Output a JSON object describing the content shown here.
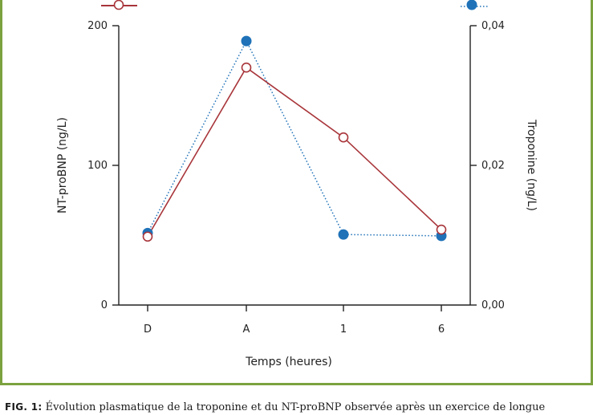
{
  "chart_data": {
    "type": "line",
    "categories": [
      "D",
      "A",
      "1",
      "6"
    ],
    "xlabel": "Temps (heures)",
    "ylabel_left": "NT-proBNP (ng/L)",
    "ylabel_right": "Troponine (ng/L)",
    "ylim_left": [
      0,
      200
    ],
    "ylim_right": [
      0,
      0.04
    ],
    "yticks_left": [
      "0",
      "100",
      "200"
    ],
    "yticks_right": [
      "0,00",
      "0,02",
      "0,04"
    ],
    "grid": false,
    "legend_placement": "top",
    "series": [
      {
        "key": "ntprobnp",
        "axis": "left",
        "values": [
          49,
          170,
          120,
          54
        ],
        "color": "#a8353a",
        "style": "solid",
        "marker": "open-circle"
      },
      {
        "key": "troponine",
        "axis": "right",
        "values": [
          0.0103,
          0.0378,
          0.0101,
          0.0099
        ],
        "color": "#1f72b8",
        "style": "dotted",
        "marker": "filled-circle"
      }
    ]
  },
  "caption": {
    "label": "FIG. 1:",
    "text": "Évolution plasmatique de la troponine et du NT-proBNP observée après un exercice de longue"
  }
}
